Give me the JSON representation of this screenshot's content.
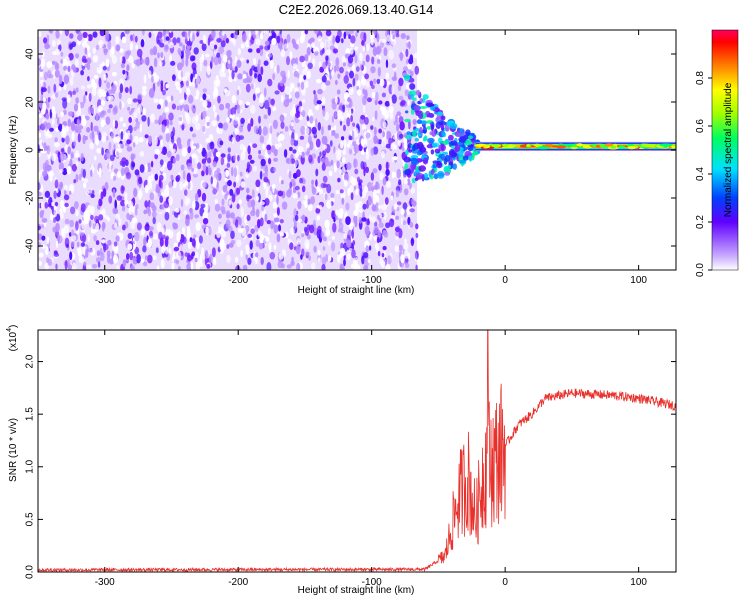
{
  "title": "C2E2.2026.069.13.40.G14",
  "chart_data": [
    {
      "type": "heatmap",
      "xlabel": "Height of straight line (km)",
      "ylabel": "Frequency (Hz)",
      "xlim": [
        -350,
        128
      ],
      "ylim": [
        -50,
        50
      ],
      "x_ticks": [
        -300,
        -200,
        -100,
        0,
        100
      ],
      "y_ticks": [
        -40,
        -20,
        0,
        20,
        40
      ],
      "x_tick_labels": [
        "-300",
        "-200",
        "-100",
        "0",
        "100"
      ],
      "y_tick_labels": [
        "-40",
        "-20",
        "0",
        "20",
        "40"
      ],
      "noise_region_end": -66,
      "transition_region": [
        -75,
        -20
      ],
      "line_frequency": 1.5,
      "colorbar": {
        "label": "Normalized spectral amplitude",
        "range": [
          0.0,
          1.0
        ],
        "ticks": [
          0.0,
          0.2,
          0.4,
          0.6,
          0.8
        ],
        "tick_labels": [
          "0.0",
          "0.2",
          "0.4",
          "0.6",
          "0.8"
        ]
      }
    },
    {
      "type": "line",
      "xlabel": "Height of straight line (km)",
      "ylabel": "SNR (10 * v/v)",
      "exponent_label": "(x10",
      "exponent_power": "4",
      "xlim": [
        -350,
        128
      ],
      "ylim": [
        0,
        23000
      ],
      "x_ticks": [
        -300,
        -200,
        -100,
        0,
        100
      ],
      "y_ticks": [
        0,
        5000,
        10000,
        15000,
        20000
      ],
      "x_tick_labels": [
        "-300",
        "-200",
        "-100",
        "0",
        "100"
      ],
      "y_tick_labels": [
        "0.0",
        "0.5",
        "1.0",
        "1.5",
        "2.0"
      ],
      "series_color": "#e8312c",
      "profile": [
        {
          "x": -350,
          "y": 200
        },
        {
          "x": -60,
          "y": 250
        },
        {
          "x": -45,
          "y": 1500
        },
        {
          "x": -35,
          "y": 7000
        },
        {
          "x": -28,
          "y": 9000
        },
        {
          "x": -22,
          "y": 5000
        },
        {
          "x": -17,
          "y": 9000
        },
        {
          "x": -14,
          "y": 10500
        },
        {
          "x": -8,
          "y": 10500
        },
        {
          "x": 0,
          "y": 12000
        },
        {
          "x": 10,
          "y": 14000
        },
        {
          "x": 20,
          "y": 15000
        },
        {
          "x": 30,
          "y": 16500
        },
        {
          "x": 50,
          "y": 17000
        },
        {
          "x": 80,
          "y": 16800
        },
        {
          "x": 100,
          "y": 16500
        },
        {
          "x": 128,
          "y": 15800
        }
      ],
      "peak": {
        "x": -13,
        "y": 23000
      }
    }
  ]
}
